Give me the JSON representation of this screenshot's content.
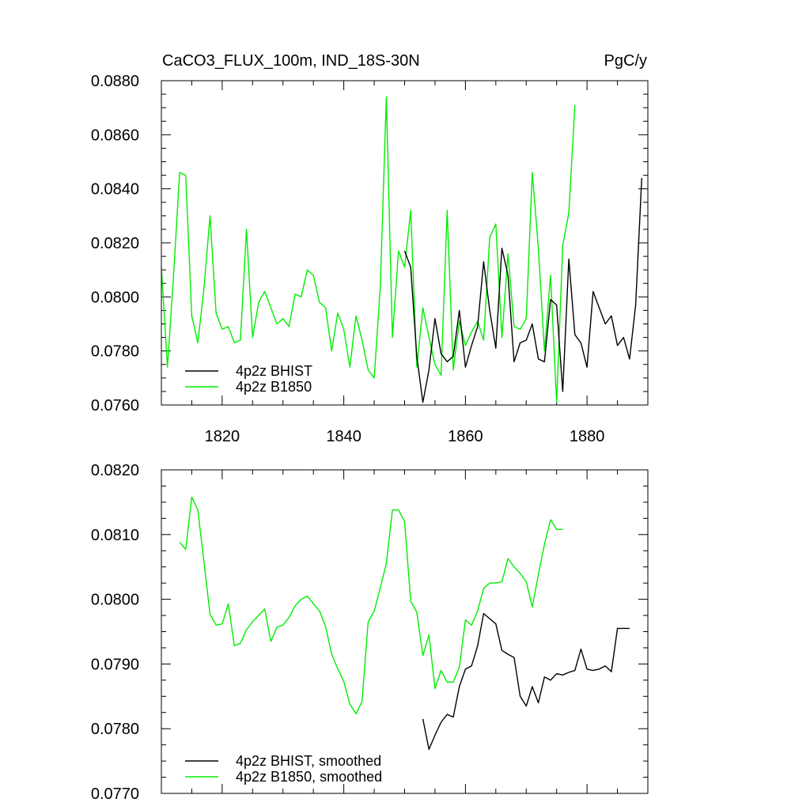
{
  "chart_data": [
    {
      "type": "line",
      "title": "CaCO3_FLUX_100m, IND_18S-30N",
      "units": "PgC/y",
      "xlim": [
        1810,
        1890
      ],
      "ylim": [
        0.076,
        0.088
      ],
      "xticks": [
        1820,
        1840,
        1860,
        1880
      ],
      "xtick_labels": [
        "1820",
        "1840",
        "1860",
        "1880"
      ],
      "yticks": [
        0.076,
        0.078,
        0.08,
        0.082,
        0.084,
        0.086,
        0.088
      ],
      "ytick_labels": [
        "0.0760",
        "0.0780",
        "0.0800",
        "0.0820",
        "0.0840",
        "0.0860",
        "0.0880"
      ],
      "legend_position": "bottom-left",
      "series": [
        {
          "name": "4p2z BHIST",
          "color": "#000000",
          "x": [
            1850,
            1851,
            1852,
            1853,
            1854,
            1855,
            1856,
            1857,
            1858,
            1859,
            1860,
            1861,
            1862,
            1863,
            1864,
            1865,
            1866,
            1867,
            1868,
            1869,
            1870,
            1871,
            1872,
            1873,
            1874,
            1875,
            1876,
            1877,
            1878,
            1879,
            1880,
            1881,
            1882,
            1883,
            1884,
            1885,
            1886,
            1887,
            1888,
            1889
          ],
          "y": [
            0.0817,
            0.0811,
            0.0778,
            0.0761,
            0.0773,
            0.0792,
            0.0779,
            0.0776,
            0.0778,
            0.0795,
            0.0774,
            0.0782,
            0.0789,
            0.0813,
            0.0795,
            0.0781,
            0.0818,
            0.0808,
            0.0776,
            0.0783,
            0.0784,
            0.079,
            0.0777,
            0.0776,
            0.0799,
            0.0797,
            0.0765,
            0.0814,
            0.0786,
            0.0783,
            0.0774,
            0.0802,
            0.0796,
            0.079,
            0.0793,
            0.0782,
            0.0785,
            0.0777,
            0.0797,
            0.0844
          ]
        },
        {
          "name": "4p2z B1850",
          "color": "#00ee00",
          "x": [
            1810,
            1811,
            1812,
            1813,
            1814,
            1815,
            1816,
            1817,
            1818,
            1819,
            1820,
            1821,
            1822,
            1823,
            1824,
            1825,
            1826,
            1827,
            1828,
            1829,
            1830,
            1831,
            1832,
            1833,
            1834,
            1835,
            1836,
            1837,
            1838,
            1839,
            1840,
            1841,
            1842,
            1843,
            1844,
            1845,
            1846,
            1847,
            1848,
            1849,
            1850,
            1851,
            1852,
            1853,
            1854,
            1855,
            1856,
            1857,
            1858,
            1859,
            1860,
            1861,
            1862,
            1863,
            1864,
            1865,
            1866,
            1867,
            1868,
            1869,
            1870,
            1871,
            1872,
            1873,
            1874,
            1875,
            1876,
            1877,
            1878
          ],
          "y": [
            0.0811,
            0.0774,
            0.0808,
            0.0846,
            0.0845,
            0.0793,
            0.0783,
            0.0803,
            0.083,
            0.0794,
            0.0788,
            0.0789,
            0.0783,
            0.0784,
            0.0825,
            0.0785,
            0.0798,
            0.0802,
            0.0796,
            0.079,
            0.0792,
            0.0789,
            0.0801,
            0.08,
            0.081,
            0.0808,
            0.0798,
            0.0796,
            0.078,
            0.0794,
            0.0788,
            0.0774,
            0.0793,
            0.0784,
            0.0773,
            0.077,
            0.0804,
            0.0874,
            0.0785,
            0.0817,
            0.0811,
            0.0832,
            0.0774,
            0.0796,
            0.0785,
            0.0775,
            0.0771,
            0.0832,
            0.0773,
            0.0791,
            0.0782,
            0.0787,
            0.0791,
            0.0784,
            0.0822,
            0.0827,
            0.0785,
            0.0816,
            0.0789,
            0.0788,
            0.0792,
            0.0846,
            0.0818,
            0.078,
            0.0808,
            0.0761,
            0.0819,
            0.0831,
            0.0871
          ]
        }
      ]
    },
    {
      "type": "line",
      "xlim": [
        1810,
        1890
      ],
      "ylim": [
        0.077,
        0.082
      ],
      "xticks": [
        1820,
        1840,
        1860,
        1880
      ],
      "yticks": [
        0.077,
        0.078,
        0.079,
        0.08,
        0.081,
        0.082
      ],
      "ytick_labels": [
        "0.0770",
        "0.0780",
        "0.0790",
        "0.0800",
        "0.0810",
        "0.0820"
      ],
      "legend_position": "bottom-left",
      "series": [
        {
          "name": "4p2z BHIST, smoothed",
          "color": "#000000",
          "x": [
            1853,
            1854,
            1855,
            1856,
            1857,
            1858,
            1859,
            1860,
            1861,
            1862,
            1863,
            1864,
            1865,
            1866,
            1867,
            1868,
            1869,
            1870,
            1871,
            1872,
            1873,
            1874,
            1875,
            1876,
            1877,
            1878,
            1879,
            1880,
            1881,
            1882,
            1883,
            1884,
            1885,
            1886,
            1887
          ],
          "y": [
            0.07815,
            0.07768,
            0.0779,
            0.0781,
            0.07822,
            0.07818,
            0.07865,
            0.07892,
            0.07897,
            0.07928,
            0.07978,
            0.0797,
            0.07962,
            0.07921,
            0.07915,
            0.0791,
            0.0785,
            0.07835,
            0.07865,
            0.0784,
            0.0788,
            0.07875,
            0.07885,
            0.07883,
            0.07887,
            0.0789,
            0.07923,
            0.07892,
            0.0789,
            0.07892,
            0.07897,
            0.07888,
            0.07955,
            0.07955,
            0.07955
          ]
        },
        {
          "name": "4p2z B1850, smoothed",
          "color": "#00ee00",
          "x": [
            1813,
            1814,
            1815,
            1816,
            1817,
            1818,
            1819,
            1820,
            1821,
            1822,
            1823,
            1824,
            1825,
            1826,
            1827,
            1828,
            1829,
            1830,
            1831,
            1832,
            1833,
            1834,
            1835,
            1836,
            1837,
            1838,
            1839,
            1840,
            1841,
            1842,
            1843,
            1844,
            1845,
            1846,
            1847,
            1848,
            1849,
            1850,
            1851,
            1852,
            1853,
            1854,
            1855,
            1856,
            1857,
            1858,
            1859,
            1860,
            1861,
            1862,
            1863,
            1864,
            1865,
            1866,
            1867,
            1868,
            1869,
            1870,
            1871,
            1872,
            1873,
            1874,
            1875,
            1876
          ],
          "y": [
            0.08088,
            0.08077,
            0.08158,
            0.08138,
            0.08058,
            0.07977,
            0.0796,
            0.07962,
            0.07993,
            0.07928,
            0.07932,
            0.07953,
            0.07965,
            0.07975,
            0.07985,
            0.07935,
            0.07957,
            0.0796,
            0.07972,
            0.0799,
            0.08,
            0.08005,
            0.07993,
            0.07982,
            0.07958,
            0.07915,
            0.07893,
            0.07873,
            0.07838,
            0.07823,
            0.07842,
            0.07965,
            0.07982,
            0.08018,
            0.08055,
            0.08138,
            0.08138,
            0.0812,
            0.07997,
            0.0798,
            0.07913,
            0.07945,
            0.07862,
            0.0789,
            0.07872,
            0.07872,
            0.07895,
            0.07968,
            0.0796,
            0.07982,
            0.08017,
            0.08025,
            0.08025,
            0.08027,
            0.08063,
            0.0805,
            0.0804,
            0.08027,
            0.07988,
            0.08038,
            0.08085,
            0.08123,
            0.08108,
            0.08108
          ]
        }
      ]
    }
  ]
}
